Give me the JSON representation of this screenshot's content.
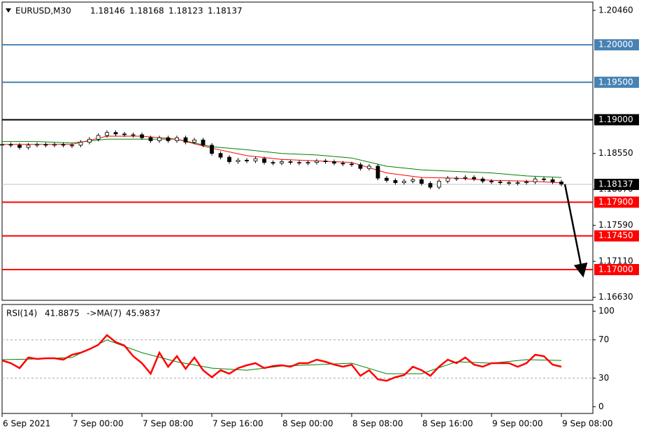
{
  "header": {
    "symbol": "EURUSD,M30",
    "open": 1.18146,
    "high": 1.18168,
    "low": 1.18123,
    "close": 1.18137
  },
  "chart_data": [
    {
      "type": "candlestick",
      "closes": [
        1.1867,
        1.1866,
        1.1863,
        1.1866,
        1.1867,
        1.1866,
        1.1867,
        1.1866,
        1.1866,
        1.187,
        1.1874,
        1.1879,
        1.1883,
        1.1881,
        1.188,
        1.188,
        1.1876,
        1.1872,
        1.1876,
        1.1872,
        1.1876,
        1.187,
        1.1873,
        1.1866,
        1.1855,
        1.185,
        1.1844,
        1.1846,
        1.1845,
        1.1848,
        1.1843,
        1.1842,
        1.1844,
        1.1843,
        1.1843,
        1.1843,
        1.1845,
        1.1844,
        1.1842,
        1.1841,
        1.184,
        1.1835,
        1.1838,
        1.1822,
        1.1819,
        1.1816,
        1.1818,
        1.182,
        1.1815,
        1.181,
        1.1818,
        1.1822,
        1.1822,
        1.1823,
        1.1821,
        1.1818,
        1.1817,
        1.1816,
        1.1816,
        1.1816,
        1.1817,
        1.1821,
        1.182,
        1.1817,
        1.1814
      ],
      "up_color": "#ffffff",
      "down_color": "#000000",
      "moving_averages": [
        {
          "color": "#008000",
          "values": [
            1.1871,
            1.1871,
            1.1869,
            1.1874,
            1.1874,
            1.1874,
            1.1864,
            1.186,
            1.1855,
            1.1853,
            1.1849,
            1.1838,
            1.1833,
            1.1831,
            1.1829,
            1.1825,
            1.1823
          ]
        },
        {
          "color": "#ff0000",
          "values": [
            1.1867,
            1.1867,
            1.1867,
            1.1878,
            1.1878,
            1.1874,
            1.1862,
            1.1852,
            1.1847,
            1.1845,
            1.1843,
            1.1829,
            1.1823,
            1.1822,
            1.1819,
            1.1818,
            1.1816
          ]
        }
      ],
      "ylim": [
        1.1659,
        1.2057
      ],
      "yticks": [
        {
          "value": 1.2046,
          "label": "1.20460"
        },
        {
          "value": 1.1855,
          "label": "1.18550"
        },
        {
          "value": 1.1807,
          "label": "1.18070"
        },
        {
          "value": 1.1759,
          "label": "1.17590"
        },
        {
          "value": 1.1711,
          "label": "1.17110"
        },
        {
          "value": 1.1663,
          "label": "1.16630"
        }
      ],
      "levels": [
        {
          "value": 1.2,
          "label": "1.20000",
          "color": "#4682b4"
        },
        {
          "value": 1.195,
          "label": "1.19500",
          "color": "#4682b4"
        },
        {
          "value": 1.19,
          "label": "1.19000",
          "color": "#000000"
        },
        {
          "value": 1.179,
          "label": "1.17900",
          "color": "#ff0000"
        },
        {
          "value": 1.1745,
          "label": "1.17450",
          "color": "#ff0000"
        },
        {
          "value": 1.17,
          "label": "1.17000",
          "color": "#ff0000"
        }
      ],
      "last": {
        "value": 1.18137,
        "color": "#c0c0c0"
      },
      "time_labels": [
        "6 Sep 2021",
        "7 Sep 00:00",
        "7 Sep 08:00",
        "7 Sep 16:00",
        "8 Sep 00:00",
        "8 Sep 08:00",
        "8 Sep 16:00",
        "9 Sep 00:00",
        "9 Sep 08:00"
      ]
    },
    {
      "type": "line",
      "title": "RSI(14)",
      "value": 41.8875,
      "ma_label": "->MA(7)",
      "ma_value": 45.9837,
      "color": "#ff0000",
      "values": [
        48.5,
        45.6,
        40.4,
        51.5,
        50,
        50.7,
        50.7,
        49.3,
        54.4,
        56.6,
        60.3,
        64.7,
        75,
        67.6,
        64,
        52.9,
        45.6,
        34.6,
        56.6,
        41.9,
        52.9,
        39.7,
        51.5,
        38.2,
        30.9,
        38.2,
        34.6,
        40.4,
        43.4,
        45.6,
        40.4,
        42.6,
        43.4,
        41.9,
        45.6,
        45.6,
        49.3,
        47.1,
        44.1,
        41.9,
        44.1,
        32.4,
        38.2,
        28.7,
        27.2,
        30.9,
        33.1,
        41.9,
        38.2,
        32.4,
        41.9,
        49.3,
        45.6,
        51.5,
        44.1,
        41.9,
        45.6,
        45.6,
        45.6,
        41.9,
        45.6,
        54.4,
        52.9,
        44.1,
        41.9
      ],
      "ma": {
        "color": "#008000",
        "values": [
          49.3,
          50,
          51.5,
          69.9,
          56.6,
          47.1,
          40.4,
          38.2,
          42.6,
          44.1,
          45.6,
          34.6,
          34.6,
          47.1,
          45.6,
          49.3,
          48.5
        ]
      },
      "ylim": [
        -7,
        107
      ],
      "yticks": [
        0,
        30,
        70,
        100
      ],
      "levels": [
        30,
        70
      ]
    }
  ]
}
